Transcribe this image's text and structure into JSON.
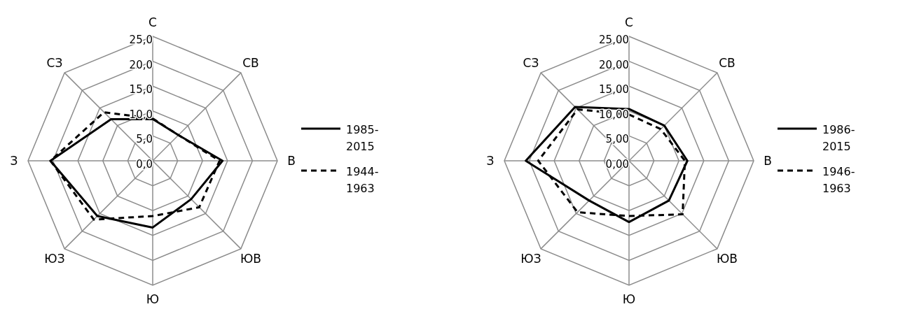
{
  "chart_data": [
    {
      "type": "radar",
      "categories": [
        "С",
        "СВ",
        "В",
        "ЮВ",
        "Ю",
        "ЮЗ",
        "З",
        "СЗ"
      ],
      "ylim": [
        0,
        25
      ],
      "yticks": [
        {
          "value": 0,
          "label": "0,0"
        },
        {
          "value": 5,
          "label": "5,0"
        },
        {
          "value": 10,
          "label": "10,0"
        },
        {
          "value": 15,
          "label": "15,0"
        },
        {
          "value": 20,
          "label": "20,0"
        },
        {
          "value": 25,
          "label": "25,0"
        }
      ],
      "grid": true,
      "legend": "right",
      "marker": "none",
      "series": [
        {
          "name": "1985-2015",
          "color": "#000000",
          "line_style": "solid",
          "values": [
            8.4,
            7.3,
            14.0,
            10.9,
            13.4,
            15.7,
            20.5,
            11.8
          ]
        },
        {
          "name": "1944-1963",
          "color": "#000000",
          "line_style": "dashed",
          "values": [
            8.5,
            7.3,
            13.4,
            13.2,
            11.1,
            16.7,
            20.5,
            13.8
          ]
        }
      ]
    },
    {
      "type": "radar",
      "categories": [
        "С",
        "СВ",
        "В",
        "ЮВ",
        "Ю",
        "ЮЗ",
        "З",
        "СЗ"
      ],
      "ylim": [
        0,
        25
      ],
      "yticks": [
        {
          "value": 0,
          "label": "0,00"
        },
        {
          "value": 5,
          "label": "5,00"
        },
        {
          "value": 10,
          "label": "10,00"
        },
        {
          "value": 15,
          "label": "15,00"
        },
        {
          "value": 20,
          "label": "20,00"
        },
        {
          "value": 25,
          "label": "25,00"
        }
      ],
      "grid": true,
      "legend": "right",
      "marker": "none",
      "series": [
        {
          "name": "1986-2015",
          "color": "#000000",
          "line_style": "solid",
          "values": [
            10.4,
            10.0,
            11.7,
            11.3,
            12.3,
            11.3,
            20.7,
            15.3
          ]
        },
        {
          "name": "1946-1963",
          "color": "#000000",
          "line_style": "dashed",
          "values": [
            9.3,
            9.0,
            11.2,
            15.2,
            11.1,
            14.6,
            18.2,
            14.6
          ]
        }
      ]
    }
  ]
}
